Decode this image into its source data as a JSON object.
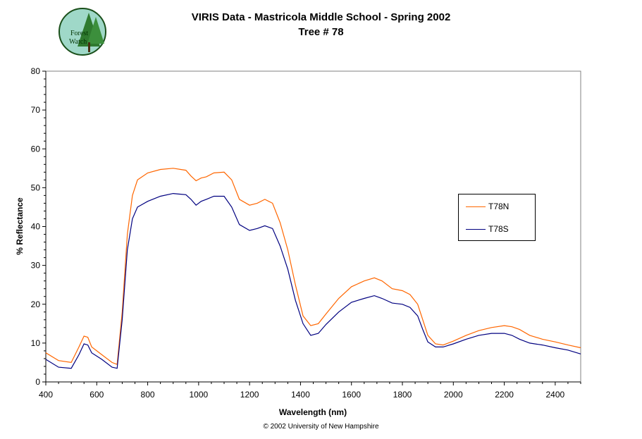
{
  "logo": {
    "text_line1": "Forest",
    "text_line2": "Watch"
  },
  "footer": {
    "copyright": "© 2002 University of New Hampshire"
  },
  "chart_data": {
    "type": "line",
    "title": "VIRIS Data - Mastricola Middle School - Spring 2002",
    "subtitle": "Tree # 78",
    "xlabel": "Wavelength (nm)",
    "ylabel": "% Reflectance",
    "xlim": [
      400,
      2500
    ],
    "ylim": [
      0,
      80
    ],
    "xticks": [
      400,
      600,
      800,
      1000,
      1200,
      1400,
      1600,
      1800,
      2000,
      2200,
      2400
    ],
    "yticks": [
      0,
      10,
      20,
      30,
      40,
      50,
      60,
      70,
      80
    ],
    "grid": false,
    "legend_position": "right",
    "series": [
      {
        "name": "T78N",
        "color": "#ff6600",
        "x": [
          400,
          450,
          500,
          530,
          550,
          565,
          580,
          620,
          660,
          680,
          700,
          720,
          740,
          760,
          800,
          850,
          900,
          950,
          970,
          990,
          1010,
          1030,
          1060,
          1100,
          1130,
          1160,
          1200,
          1230,
          1260,
          1290,
          1320,
          1350,
          1380,
          1410,
          1440,
          1470,
          1500,
          1550,
          1600,
          1650,
          1690,
          1720,
          1760,
          1800,
          1830,
          1860,
          1880,
          1900,
          1930,
          1960,
          2000,
          2050,
          2100,
          2150,
          2200,
          2230,
          2260,
          2300,
          2350,
          2400,
          2450,
          2500
        ],
        "y": [
          7.5,
          5.5,
          5,
          9,
          11.8,
          11.5,
          9,
          7,
          5,
          4.5,
          18,
          38,
          48,
          52,
          53.8,
          54.7,
          55,
          54.5,
          53,
          51.8,
          52.5,
          52.8,
          53.8,
          54,
          52,
          47,
          45.5,
          46,
          47,
          46,
          41,
          34,
          25,
          17,
          14.5,
          15,
          17.5,
          21.5,
          24.5,
          26,
          26.8,
          26,
          24,
          23.5,
          22.5,
          20,
          16,
          12,
          9.8,
          9.5,
          10.5,
          12,
          13.2,
          14,
          14.5,
          14.2,
          13.5,
          12,
          11,
          10.3,
          9.5,
          8.8
        ]
      },
      {
        "name": "T78S",
        "color": "#000080",
        "x": [
          400,
          450,
          500,
          530,
          550,
          565,
          580,
          620,
          660,
          680,
          700,
          720,
          740,
          760,
          800,
          850,
          900,
          950,
          970,
          990,
          1010,
          1030,
          1060,
          1100,
          1130,
          1160,
          1200,
          1230,
          1260,
          1290,
          1320,
          1350,
          1380,
          1410,
          1440,
          1470,
          1500,
          1550,
          1600,
          1650,
          1690,
          1720,
          1760,
          1800,
          1830,
          1860,
          1880,
          1900,
          1930,
          1960,
          2000,
          2050,
          2100,
          2150,
          2200,
          2230,
          2260,
          2300,
          2350,
          2400,
          2450,
          2500
        ],
        "y": [
          5.8,
          3.8,
          3.5,
          7,
          9.8,
          9.5,
          7.5,
          5.8,
          3.8,
          3.5,
          16,
          34,
          42,
          45,
          46.5,
          47.8,
          48.5,
          48.2,
          47,
          45.5,
          46.5,
          47,
          47.8,
          47.8,
          45,
          40.5,
          39,
          39.5,
          40.2,
          39.5,
          35,
          29,
          21,
          15,
          12,
          12.5,
          14.8,
          18,
          20.5,
          21.5,
          22.2,
          21.5,
          20.3,
          20,
          19.2,
          17,
          13.5,
          10.3,
          9,
          9,
          9.8,
          11,
          12,
          12.5,
          12.5,
          12,
          11,
          10,
          9.5,
          8.8,
          8.2,
          7.2
        ]
      }
    ]
  }
}
